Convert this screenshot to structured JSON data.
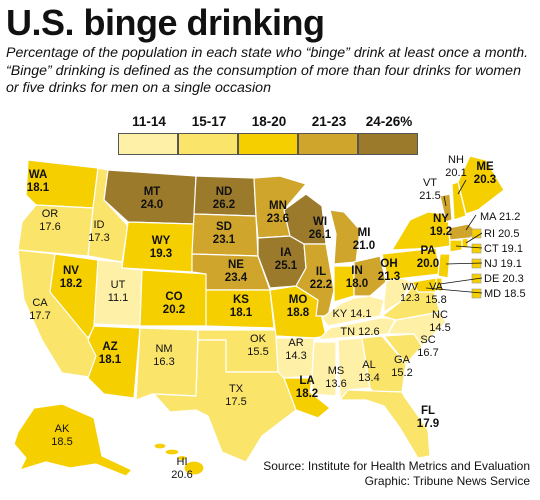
{
  "title": "U.S. binge drinking",
  "subtitle": "Percentage of the population in each state who “binge” drink at least once a month. “Binge” drinking is defined as the consumption of more than four drinks for women or five drinks for men on a single occasion",
  "legend": [
    {
      "label": "11-14",
      "color": "#fff0a8"
    },
    {
      "label": "15-17",
      "color": "#fbe46a"
    },
    {
      "label": "18-20",
      "color": "#f5cf00"
    },
    {
      "label": "21-23",
      "color": "#cfa52c"
    },
    {
      "label": "24-26%",
      "color": "#9c7a2c"
    }
  ],
  "states": [
    {
      "abbr": "WA",
      "value": "18.1"
    },
    {
      "abbr": "OR",
      "value": "17.6"
    },
    {
      "abbr": "ID",
      "value": "17.3"
    },
    {
      "abbr": "MT",
      "value": "24.0"
    },
    {
      "abbr": "WY",
      "value": "19.3"
    },
    {
      "abbr": "NV",
      "value": "18.2"
    },
    {
      "abbr": "UT",
      "value": "11.1"
    },
    {
      "abbr": "CA",
      "value": "17.7"
    },
    {
      "abbr": "AZ",
      "value": "18.1"
    },
    {
      "abbr": "CO",
      "value": "20.2"
    },
    {
      "abbr": "NM",
      "value": "16.3"
    },
    {
      "abbr": "ND",
      "value": "26.2"
    },
    {
      "abbr": "SD",
      "value": "23.1"
    },
    {
      "abbr": "NE",
      "value": "23.4"
    },
    {
      "abbr": "KS",
      "value": "18.1"
    },
    {
      "abbr": "OK",
      "value": "15.5"
    },
    {
      "abbr": "TX",
      "value": "17.5"
    },
    {
      "abbr": "MN",
      "value": "23.6"
    },
    {
      "abbr": "IA",
      "value": "25.1"
    },
    {
      "abbr": "MO",
      "value": "18.8"
    },
    {
      "abbr": "AR",
      "value": "14.3"
    },
    {
      "abbr": "LA",
      "value": "18.2"
    },
    {
      "abbr": "WI",
      "value": "26.1"
    },
    {
      "abbr": "IL",
      "value": "22.2"
    },
    {
      "abbr": "MI",
      "value": "21.0"
    },
    {
      "abbr": "IN",
      "value": "18.0"
    },
    {
      "abbr": "OH",
      "value": "21.3"
    },
    {
      "abbr": "KY",
      "value": "14.1"
    },
    {
      "abbr": "TN",
      "value": "12.6"
    },
    {
      "abbr": "MS",
      "value": "13.6"
    },
    {
      "abbr": "AL",
      "value": "13.4"
    },
    {
      "abbr": "GA",
      "value": "15.2"
    },
    {
      "abbr": "FL",
      "value": "17.9"
    },
    {
      "abbr": "SC",
      "value": "16.7"
    },
    {
      "abbr": "NC",
      "value": "14.5"
    },
    {
      "abbr": "VA",
      "value": "15.8"
    },
    {
      "abbr": "WV",
      "value": "12.3"
    },
    {
      "abbr": "PA",
      "value": "20.0"
    },
    {
      "abbr": "NY",
      "value": "19.2"
    },
    {
      "abbr": "VT",
      "value": "21.5"
    },
    {
      "abbr": "NH",
      "value": "20.1"
    },
    {
      "abbr": "ME",
      "value": "20.3"
    },
    {
      "abbr": "MA",
      "value": "21.2"
    },
    {
      "abbr": "RI",
      "value": "20.5"
    },
    {
      "abbr": "CT",
      "value": "19.1"
    },
    {
      "abbr": "NJ",
      "value": "19.1"
    },
    {
      "abbr": "DE",
      "value": "20.3"
    },
    {
      "abbr": "MD",
      "value": "18.5"
    },
    {
      "abbr": "AK",
      "value": "18.5"
    },
    {
      "abbr": "HI",
      "value": "20.6"
    }
  ],
  "credit": {
    "source": "Source: Institute for Health Metrics and Evaluation",
    "graphic": "Graphic: Tribune News Service"
  }
}
